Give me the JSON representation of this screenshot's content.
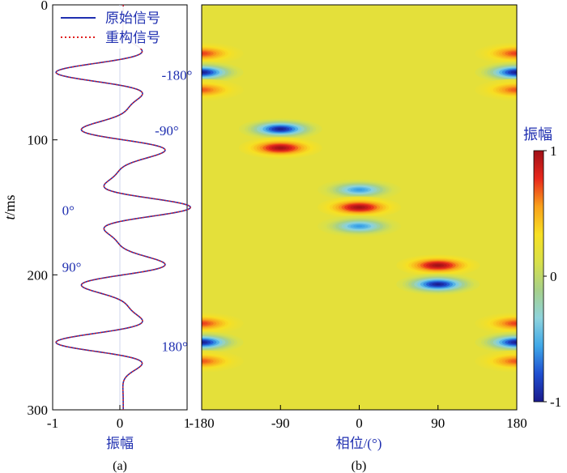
{
  "chart_data": [
    {
      "panel": "(a)",
      "type": "line",
      "xlabel": "振幅",
      "ylabel_italic": "t",
      "ylabel_rest": "/ms",
      "xlim": [
        -1,
        1
      ],
      "ylim": [
        0,
        300
      ],
      "y_inverted": true,
      "xticks": [
        "-1",
        "0",
        "1"
      ],
      "xtick_values": [
        -1,
        0,
        1
      ],
      "yticks": [
        "0",
        "100",
        "200",
        "300"
      ],
      "ytick_values": [
        0,
        100,
        200,
        300
      ],
      "legend": [
        {
          "name": "原始信号",
          "color": "#1f2fb0",
          "style": "solid"
        },
        {
          "name": "重构信号",
          "color": "#e02020",
          "style": "dotted"
        }
      ],
      "annotations": [
        {
          "text": "-180°",
          "x": 0.62,
          "t": 52
        },
        {
          "text": "-90°",
          "x": 0.52,
          "t": 93
        },
        {
          "text": "0°",
          "x": -0.86,
          "t": 152
        },
        {
          "text": "90°",
          "x": -0.86,
          "t": 194
        },
        {
          "text": "180°",
          "x": 0.62,
          "t": 253
        }
      ],
      "wavelets": [
        {
          "t0": 50,
          "phase_deg": -180,
          "amp": 1.0
        },
        {
          "t0": 100,
          "phase_deg": -90,
          "amp": 0.85
        },
        {
          "t0": 150,
          "phase_deg": 0,
          "amp": 1.0
        },
        {
          "t0": 200,
          "phase_deg": 90,
          "amp": 0.85
        },
        {
          "t0": 250,
          "phase_deg": 180,
          "amp": 1.0
        }
      ],
      "wavelet_freq_hz": 25,
      "wavelet_decay_ms": 11,
      "x_offset": 0.05
    },
    {
      "panel": "(b)",
      "type": "heatmap",
      "xlabel": "相位/(°)",
      "xlim": [
        -180,
        180
      ],
      "ylim": [
        0,
        300
      ],
      "xticks": [
        "-180",
        "-90",
        "0",
        "90",
        "180"
      ],
      "xtick_values": [
        -180,
        -90,
        0,
        90,
        180
      ],
      "colorbar": {
        "title": "振幅",
        "ticks": [
          "1",
          "0",
          "-1"
        ],
        "tick_values": [
          1,
          0,
          -1
        ],
        "range": [
          -1,
          1
        ],
        "colormap": [
          "#1a1a8c",
          "#1f4fd1",
          "#3fa8e8",
          "#8ed3dc",
          "#a6d08a",
          "#d8e04a",
          "#f7e023",
          "#f9a11b",
          "#e8281c",
          "#a01018"
        ]
      },
      "background_value": 0.2,
      "blobs": [
        {
          "t": 36,
          "phase": -180,
          "value": 0.75,
          "wrap": true
        },
        {
          "t": 50,
          "phase": -180,
          "value": -1.0,
          "wrap": true
        },
        {
          "t": 63,
          "phase": -180,
          "value": 0.7,
          "wrap": true
        },
        {
          "t": 92,
          "phase": -90,
          "value": -1.0,
          "wrap": false
        },
        {
          "t": 106,
          "phase": -90,
          "value": 1.0,
          "wrap": false
        },
        {
          "t": 137,
          "phase": 0,
          "value": -0.6,
          "wrap": false
        },
        {
          "t": 150,
          "phase": 0,
          "value": 1.0,
          "wrap": false
        },
        {
          "t": 164,
          "phase": 0,
          "value": -0.6,
          "wrap": false
        },
        {
          "t": 193,
          "phase": 90,
          "value": 1.0,
          "wrap": false
        },
        {
          "t": 207,
          "phase": 90,
          "value": -1.0,
          "wrap": false
        },
        {
          "t": 236,
          "phase": 180,
          "value": 0.75,
          "wrap": true
        },
        {
          "t": 250,
          "phase": 180,
          "value": -1.0,
          "wrap": true
        },
        {
          "t": 264,
          "phase": 180,
          "value": 0.7,
          "wrap": true
        }
      ],
      "blob_halfwidth_deg": 28,
      "blob_halfheight_ms": 5
    }
  ]
}
